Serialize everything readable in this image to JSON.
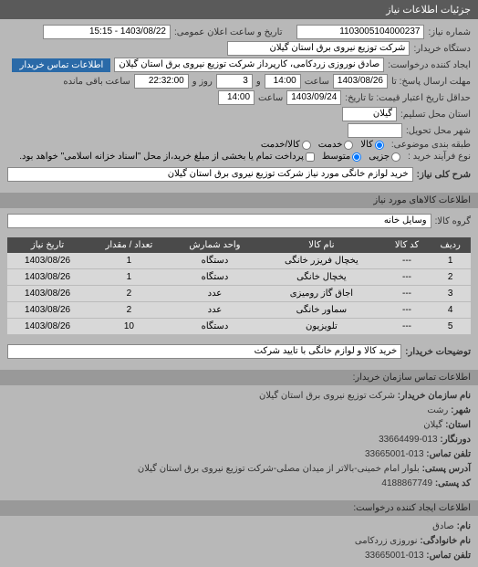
{
  "header": {
    "title": "جزئیات اطلاعات نیاز"
  },
  "form": {
    "need_number_label": "شماره نیاز:",
    "need_number": "1103005104000237",
    "announce_label": "تاریخ و ساعت اعلان عمومی:",
    "announce_value": "1403/08/22 - 15:15",
    "buyer_org_label": "دستگاه خریدار:",
    "buyer_org": "شرکت توزیع نیروی برق استان گیلان",
    "requester_label": "ایجاد کننده درخواست:",
    "requester": "صادق نوروزی زردکامی، کارپرداز شرکت توزیع نیروی برق استان گیلان",
    "contact_btn": "اطلاعات تماس خریدار",
    "deadline_send_label": "مهلت ارسال پاسخ: تا",
    "deadline_send_date": "1403/08/26",
    "deadline_send_time_label": "ساعت",
    "deadline_send_time": "14:00",
    "days_label": "و",
    "days_value": "3",
    "days_after": "روز و",
    "remaining_time": "22:32:00",
    "remaining_label": "ساعت باقی مانده",
    "validity_label": "حداقل تاریخ اعتبار قیمت: تا تاریخ:",
    "validity_date": "1403/09/24",
    "validity_time_label": "ساعت",
    "validity_time": "14:00",
    "province_label": "استان محل تسلیم:",
    "province": "گیلان",
    "city_label": "شهر محل تحویل:",
    "category_label": "طبقه بندی موضوعی:",
    "cat_goods": "کالا",
    "cat_service": "خدمت",
    "cat_goods_service": "کالا/خدمت",
    "purchase_type_label": "نوع فرآیند خرید :",
    "pt_small": "جزیی",
    "pt_medium": "متوسط",
    "pt_note": "پرداخت تمام یا بخشی از مبلغ خرید،از محل \"اسناد خزانه اسلامی\" خواهد بود.",
    "desc_label": "شرح کلی نیاز:",
    "desc_value": "خرید لوازم خانگی مورد نیاز شرکت توزیع نیروی برق استان گیلان"
  },
  "goods_section": {
    "title": "اطلاعات کالاهای مورد نیاز",
    "group_label": "گروه کالا:",
    "group_value": "وسایل خانه"
  },
  "table": {
    "headers": {
      "row": "ردیف",
      "code": "کد کالا",
      "name": "نام کالا",
      "unit": "واحد شمارش",
      "qty": "تعداد / مقدار",
      "date": "تاریخ نیاز"
    },
    "rows": [
      {
        "row": "1",
        "code": "---",
        "name": "یخچال فریزر خانگی",
        "unit": "دستگاه",
        "qty": "1",
        "date": "1403/08/26"
      },
      {
        "row": "2",
        "code": "---",
        "name": "یخچال خانگی",
        "unit": "دستگاه",
        "qty": "1",
        "date": "1403/08/26"
      },
      {
        "row": "3",
        "code": "---",
        "name": "اجاق گاز رومیزی",
        "unit": "عدد",
        "qty": "2",
        "date": "1403/08/26"
      },
      {
        "row": "4",
        "code": "---",
        "name": "سماور خانگی",
        "unit": "عدد",
        "qty": "2",
        "date": "1403/08/26"
      },
      {
        "row": "5",
        "code": "---",
        "name": "تلویزیون",
        "unit": "دستگاه",
        "qty": "10",
        "date": "1403/08/26"
      }
    ]
  },
  "buyerNote": {
    "label": "توضیحات خریدار:",
    "value": "خرید کالا و لوازم خانگی با تایید شرکت"
  },
  "contact_section": {
    "title": "اطلاعات تماس سازمان خریدار:",
    "org_label": "نام سازمان خریدار:",
    "org_value": "شرکت توزیع نیروی برق استان گیلان",
    "city_label": "شهر:",
    "city_value": "رشت",
    "prov_label": "استان:",
    "prov_value": "گیلان",
    "fax_label": "دورنگار:",
    "fax_value": "013-33664499",
    "phone_label": "تلفن تماس:",
    "phone_value": "013-33665001",
    "addr_label": "آدرس پستی:",
    "addr_value": "بلوار امام خمینی-بالاتر از میدان مصلی-شرکت توزیع نیروی برق استان گیلان",
    "postal_label": "کد پستی:",
    "postal_value": "4188867749"
  },
  "creator_section": {
    "title": "اطلاعات ایجاد کننده درخواست:",
    "name_label": "نام:",
    "name_value": "صادق",
    "family_label": "نام خانوادگی:",
    "family_value": "نوروزی زردکامی",
    "phone_label": "تلفن تماس:",
    "phone_value": "013-33665001"
  }
}
